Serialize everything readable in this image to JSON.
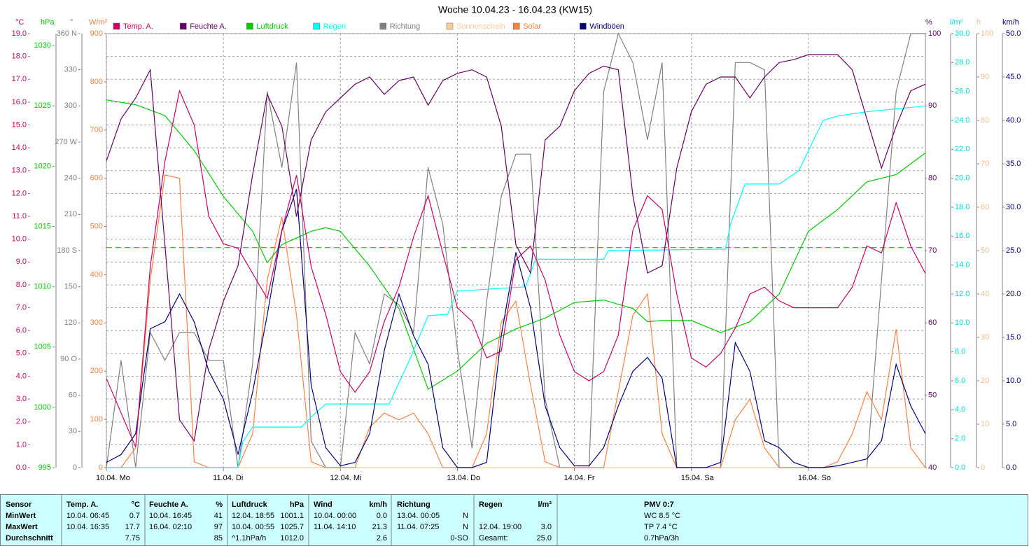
{
  "chart_data": {
    "type": "line",
    "title": "Woche 10.04.23 - 16.04.23 (KW15)",
    "xlim": [
      0,
      168
    ],
    "xticks": [
      {
        "value": 0,
        "label": "10.04.  Mo"
      },
      {
        "value": 24,
        "label": "11.04.  Di"
      },
      {
        "value": 48,
        "label": "12.04.  Mi"
      },
      {
        "value": 72,
        "label": "13.04.  Do"
      },
      {
        "value": 96,
        "label": "14.04.  Fr"
      },
      {
        "value": 120,
        "label": "15.04.  Sa"
      },
      {
        "value": 144,
        "label": "16.04.  So"
      }
    ],
    "grid": true,
    "x": [
      0,
      3,
      6,
      9,
      12,
      15,
      18,
      21,
      24,
      27,
      30,
      33,
      36,
      39,
      42,
      45,
      48,
      51,
      54,
      57,
      60,
      63,
      66,
      69,
      72,
      75,
      78,
      81,
      84,
      87,
      90,
      93,
      96,
      99,
      102,
      105,
      108,
      111,
      114,
      117,
      120,
      123,
      126,
      129,
      132,
      135,
      138,
      141,
      144,
      147,
      150,
      153,
      156,
      159,
      162,
      165,
      168
    ],
    "axes": {
      "temp": {
        "label": "°C",
        "color": "#cc0066",
        "lim": [
          0,
          19
        ],
        "ticks": [
          {
            "value": 0,
            "label": "0.0"
          },
          {
            "value": 1,
            "label": "1.0"
          },
          {
            "value": 2,
            "label": "2.0"
          },
          {
            "value": 3,
            "label": "3.0"
          },
          {
            "value": 4,
            "label": "4.0"
          },
          {
            "value": 5,
            "label": "5.0"
          },
          {
            "value": 6,
            "label": "6.0"
          },
          {
            "value": 7,
            "label": "7.0"
          },
          {
            "value": 8,
            "label": "8.0"
          },
          {
            "value": 9,
            "label": "9.0"
          },
          {
            "value": 10,
            "label": "10.0"
          },
          {
            "value": 11,
            "label": "11.0"
          },
          {
            "value": 12,
            "label": "12.0"
          },
          {
            "value": 13,
            "label": "13.0"
          },
          {
            "value": 14,
            "label": "14.0"
          },
          {
            "value": 15,
            "label": "15.0"
          },
          {
            "value": 16,
            "label": "16.0"
          },
          {
            "value": 17,
            "label": "17.0"
          },
          {
            "value": 18,
            "label": "18.0"
          },
          {
            "value": 19,
            "label": "19.0"
          }
        ]
      },
      "hpa": {
        "label": "hPa",
        "color": "#00cc00",
        "lim": [
          995,
          1031
        ],
        "ticks": [
          995,
          1000,
          1005,
          1010,
          1015,
          1020,
          1025,
          1030
        ]
      },
      "dir": {
        "label": "°",
        "color": "#808080",
        "lim": [
          0,
          360
        ],
        "ticks": [
          {
            "value": 0,
            "label": "0"
          },
          {
            "value": 30,
            "label": "30"
          },
          {
            "value": 60,
            "label": "60"
          },
          {
            "value": 90,
            "label": "90  O"
          },
          {
            "value": 120,
            "label": "120"
          },
          {
            "value": 150,
            "label": "150"
          },
          {
            "value": 180,
            "label": "180  S"
          },
          {
            "value": 210,
            "label": "210"
          },
          {
            "value": 240,
            "label": "240"
          },
          {
            "value": 270,
            "label": "270  W"
          },
          {
            "value": 300,
            "label": "300"
          },
          {
            "value": 330,
            "label": "330"
          },
          {
            "value": 360,
            "label": "360  N"
          }
        ]
      },
      "solar": {
        "label": "W/m²",
        "color": "#ff8040",
        "lim": [
          0,
          900
        ],
        "ticks": [
          0,
          100,
          200,
          300,
          400,
          500,
          600,
          700,
          800,
          900
        ]
      },
      "hum": {
        "label": "%",
        "color": "#660066",
        "lim": [
          40,
          100
        ],
        "ticks": [
          40,
          50,
          60,
          70,
          80,
          90,
          100
        ]
      },
      "rain": {
        "label": "l/m²",
        "color": "#00dddd",
        "lim": [
          0,
          30
        ],
        "ticks": [
          {
            "value": 0,
            "label": "0.0"
          },
          {
            "value": 2,
            "label": "2.0"
          },
          {
            "value": 4,
            "label": "4.0"
          },
          {
            "value": 6,
            "label": "6.0"
          },
          {
            "value": 8,
            "label": "8.0"
          },
          {
            "value": 10,
            "label": "10.0"
          },
          {
            "value": 12,
            "label": "12.0"
          },
          {
            "value": 14,
            "label": "14.0"
          },
          {
            "value": 16,
            "label": "16.0"
          },
          {
            "value": 18,
            "label": "18.0"
          },
          {
            "value": 20,
            "label": "20.0"
          },
          {
            "value": 22,
            "label": "22.0"
          },
          {
            "value": 24,
            "label": "24.0"
          },
          {
            "value": 26,
            "label": "26.0"
          },
          {
            "value": 28,
            "label": "28.0"
          },
          {
            "value": 30,
            "label": "30.0"
          }
        ]
      },
      "sun": {
        "label": "h",
        "color": "#f0c090",
        "lim": [
          0,
          100
        ],
        "ticks": [
          0,
          10,
          20,
          30,
          40,
          50,
          60,
          70,
          80,
          90,
          100
        ]
      },
      "gust": {
        "label": "km/h",
        "color": "#000080",
        "lim": [
          0,
          50
        ],
        "ticks": [
          {
            "value": 0,
            "label": "0.0"
          },
          {
            "value": 5,
            "label": "5.0"
          },
          {
            "value": 10,
            "label": "10.0"
          },
          {
            "value": 15,
            "label": "15.0"
          },
          {
            "value": 20,
            "label": "20.0"
          },
          {
            "value": 25,
            "label": "25.0"
          },
          {
            "value": 30,
            "label": "30.0"
          },
          {
            "value": 35,
            "label": "35.0"
          },
          {
            "value": 40,
            "label": "40.0"
          },
          {
            "value": 45,
            "label": "45.0"
          },
          {
            "value": 50,
            "label": "50.0"
          }
        ]
      }
    },
    "reference_line": {
      "axis": "hpa",
      "value": 1013.25,
      "color": "#00cc00"
    },
    "series": [
      {
        "name": "Temp. A.",
        "color": "#cc0066",
        "axis": "temp",
        "values": [
          3.9,
          2.4,
          0.9,
          8.8,
          13.4,
          16.5,
          15.0,
          11.0,
          9.8,
          9.6,
          8.5,
          7.4,
          10.4,
          12.8,
          8.8,
          6.7,
          4.2,
          3.3,
          4.2,
          6.4,
          7.9,
          10.1,
          11.9,
          9.4,
          7.0,
          6.4,
          4.8,
          5.1,
          9.1,
          9.7,
          8.2,
          5.8,
          4.2,
          3.8,
          4.2,
          5.8,
          10.4,
          11.9,
          11.3,
          7.6,
          4.8,
          4.4,
          5.0,
          6.1,
          7.6,
          7.9,
          7.3,
          7.0,
          7.0,
          7.0,
          7.0,
          7.9,
          9.7,
          9.4,
          11.6,
          9.7,
          8.5
        ]
      },
      {
        "name": "Feuchte A.",
        "color": "#660066",
        "axis": "hum",
        "values": [
          82.4,
          88.2,
          91.1,
          95,
          70.8,
          46.6,
          43.7,
          56.3,
          63,
          67.9,
          80.5,
          91.6,
          87.2,
          74.7,
          85.3,
          89.2,
          91.1,
          93,
          94,
          91.6,
          93.5,
          94,
          90.1,
          93.5,
          94.5,
          95,
          94,
          87.2,
          70.8,
          66.9,
          85.3,
          87.2,
          92.1,
          94.5,
          95.5,
          95,
          77.6,
          66.9,
          67.9,
          81.4,
          89.2,
          93,
          94,
          94,
          91.1,
          94,
          96,
          96.4,
          97.1,
          97.1,
          97.1,
          95,
          88.2,
          81.4,
          87.2,
          92.1,
          93
        ]
      },
      {
        "name": "Luftdruck",
        "color": "#00cc00",
        "axis": "hpa",
        "x": [
          0,
          6,
          12,
          18,
          24,
          30,
          33,
          36,
          42,
          45,
          48,
          54,
          60,
          66,
          72,
          78,
          84,
          90,
          96,
          102,
          108,
          111,
          114,
          120,
          126,
          132,
          138,
          144,
          150,
          156,
          162,
          168
        ],
        "values": [
          1025.5,
          1025.1,
          1024.2,
          1021.3,
          1017.5,
          1014.6,
          1012.0,
          1013.5,
          1014.6,
          1014.9,
          1014.6,
          1011.7,
          1008.2,
          1001.5,
          1003.0,
          1005.3,
          1006.5,
          1007.4,
          1008.7,
          1008.9,
          1008.2,
          1007.1,
          1007.2,
          1007.2,
          1006.2,
          1007.1,
          1009.4,
          1014.6,
          1016.4,
          1018.7,
          1019.3,
          1021.1
        ]
      },
      {
        "name": "Regen",
        "color": "#00ffff",
        "axis": "rain",
        "x": [
          0,
          27,
          28,
          30,
          40,
          42,
          45,
          58,
          62,
          66,
          70,
          72,
          86,
          88,
          102,
          103,
          127,
          128,
          131,
          138,
          142,
          147,
          150,
          156,
          168
        ],
        "values": [
          0,
          0,
          1.8,
          2.8,
          2.8,
          3.5,
          4.4,
          4.4,
          7.3,
          10.5,
          10.6,
          12.2,
          12.5,
          14.4,
          14.4,
          15.0,
          15.1,
          16.8,
          19.6,
          19.6,
          20.5,
          24.0,
          24.3,
          24.6,
          25.0
        ]
      },
      {
        "name": "Richtung",
        "color": "#808080",
        "axis": "dir",
        "values": [
          0,
          89,
          0,
          112,
          89,
          112,
          112,
          89,
          89,
          0,
          86,
          312,
          249,
          336,
          22,
          0,
          0,
          112,
          86,
          144,
          135,
          112,
          249,
          202,
          98,
          16,
          138,
          225,
          260,
          260,
          57,
          0,
          0,
          0,
          312,
          360,
          336,
          272,
          336,
          0,
          0,
          0,
          0,
          336,
          336,
          330,
          0,
          0,
          0,
          0,
          0,
          0,
          0,
          156,
          312,
          360,
          360
        ]
      },
      {
        "name": "Sonnenschein",
        "color": "#ffcc99",
        "axis": "sun",
        "x": [
          0,
          168
        ],
        "values": [
          0,
          0
        ]
      },
      {
        "name": "Solar",
        "color": "#ff8040",
        "axis": "solar",
        "values": [
          0,
          0,
          41,
          389,
          607,
          600,
          12,
          0,
          0,
          0,
          70,
          389,
          520,
          316,
          12,
          0,
          0,
          0,
          84,
          113,
          99,
          113,
          70,
          0,
          0,
          0,
          70,
          302,
          345,
          171,
          12,
          0,
          0,
          0,
          0,
          157,
          316,
          360,
          70,
          0,
          0,
          0,
          0,
          99,
          142,
          41,
          0,
          0,
          0,
          0,
          12,
          70,
          157,
          99,
          287,
          41,
          0
        ]
      },
      {
        "name": "Windböen",
        "color": "#000080",
        "axis": "gust",
        "values": [
          0.6,
          1.5,
          3.9,
          16,
          16.8,
          20,
          16.8,
          11.1,
          7.9,
          1.5,
          8.7,
          17.6,
          27.3,
          32.1,
          9.5,
          2.3,
          0.2,
          0.6,
          3.9,
          13.5,
          20,
          15.2,
          11.9,
          2.3,
          0,
          0,
          0.6,
          15.2,
          24.8,
          18.4,
          7.1,
          2.3,
          0.2,
          0.2,
          2.3,
          7.1,
          11.1,
          12.7,
          10.3,
          0,
          0,
          0,
          0.6,
          14.4,
          11.1,
          3.1,
          2.3,
          0.6,
          0,
          0,
          0.2,
          0.6,
          1,
          3.1,
          11.9,
          7.1,
          3.9
        ]
      }
    ]
  },
  "table": {
    "rows": [
      [
        "Sensor",
        "Temp. A.",
        "°C",
        "Feuchte A.",
        "%",
        "Luftdruck",
        "hPa",
        "Wind",
        "km/h",
        "Richtung",
        null,
        "Regen",
        "l/m²",
        "PMV 0:7"
      ],
      [
        "MinWert",
        "10.04.  06:45",
        "0.7",
        "10.04.  16:45",
        "41",
        "12.04.  18:55",
        "1001.1",
        "10.04.  00:00",
        "0.0",
        "13.04.  00:05",
        "N",
        null,
        null,
        "WC 8.5 °C"
      ],
      [
        "MaxWert",
        "10.04.  16:35",
        "17.7",
        "16.04.  02:10",
        "97",
        "10.04.  00:55",
        "1025.7",
        "11.04.  14:10",
        "21.3",
        "11.04.  07:25",
        "N",
        "12.04.  19:00",
        "3.0",
        "TP 7.4 °C"
      ],
      [
        "Durchschnitt",
        null,
        "7.75",
        null,
        "85",
        "^1.1hPa/h",
        "1012.0",
        null,
        "2.6",
        null,
        "0-SO",
        "Gesamt:",
        "25.0",
        "0.7hPa/3h"
      ]
    ]
  }
}
